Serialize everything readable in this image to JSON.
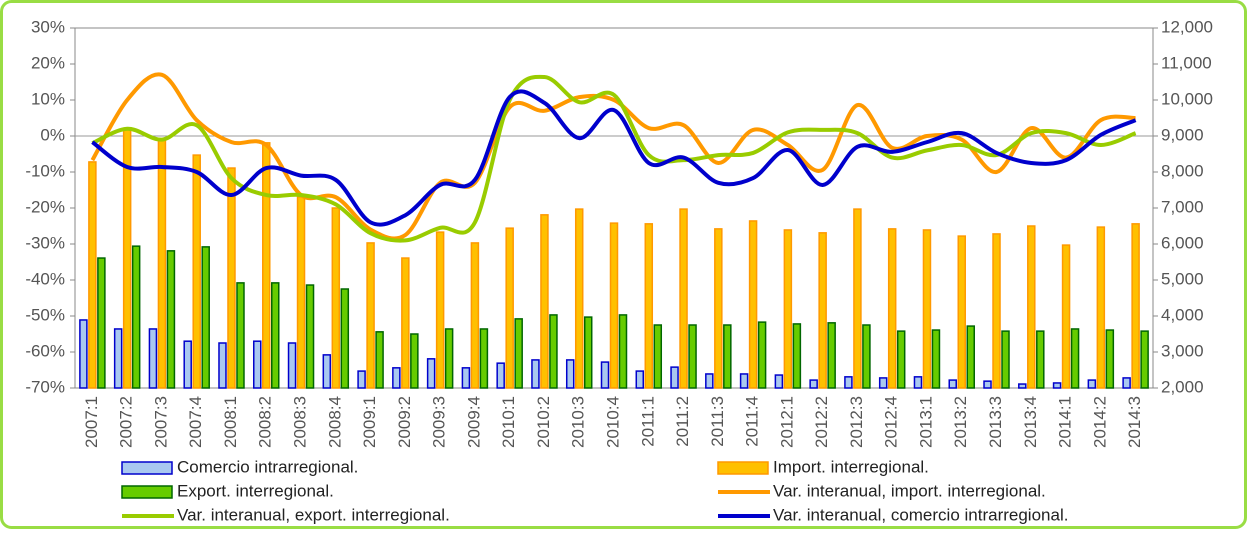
{
  "chart_data": {
    "type": "combo",
    "categories": [
      "2007:1",
      "2007:2",
      "2007:3",
      "2007:4",
      "2008:1",
      "2008:2",
      "2008:3",
      "2008:4",
      "2009:1",
      "2009:2",
      "2009:3",
      "2009:4",
      "2010:1",
      "2010:2",
      "2010:3",
      "2010:4",
      "2011:1",
      "2011:2",
      "2011:3",
      "2011:4",
      "2012:1",
      "2012:2",
      "2012:3",
      "2012:4",
      "2013:1",
      "2013:2",
      "2013:3",
      "2013:4",
      "2014:1",
      "2014:2",
      "2014:3"
    ],
    "series": [
      {
        "name": "Comercio intrarregional.",
        "type": "bar",
        "axis": "y2",
        "color": "#a9c8f0",
        "edge": "#0000cc",
        "values": [
          3890,
          3640,
          3640,
          3300,
          3250,
          3300,
          3250,
          2920,
          2470,
          2560,
          2810,
          2560,
          2690,
          2780,
          2780,
          2720,
          2470,
          2580,
          2390,
          2390,
          2360,
          2220,
          2310,
          2280,
          2310,
          2220,
          2190,
          2110,
          2140,
          2220,
          2280
        ]
      },
      {
        "name": "Import. interregional.",
        "type": "bar",
        "axis": "y2",
        "color": "#ffc000",
        "edge": "#ff9900",
        "values": [
          8280,
          9170,
          8890,
          8470,
          8110,
          8810,
          7310,
          7000,
          6030,
          5610,
          6330,
          6030,
          6440,
          6810,
          6970,
          6580,
          6560,
          6970,
          6420,
          6640,
          6390,
          6310,
          6970,
          6420,
          6390,
          6220,
          6280,
          6500,
          5970,
          6470,
          6560
        ]
      },
      {
        "name": "Export. interregional.",
        "type": "bar",
        "axis": "y2",
        "color": "#66cc00",
        "edge": "#006600",
        "values": [
          5610,
          5940,
          5810,
          5920,
          4920,
          4920,
          4860,
          4750,
          3560,
          3500,
          3640,
          3640,
          3920,
          4030,
          3970,
          4030,
          3750,
          3750,
          3750,
          3830,
          3780,
          3810,
          3750,
          3580,
          3610,
          3720,
          3580,
          3580,
          3640,
          3610,
          3580
        ]
      },
      {
        "name": "Var. interanual, import. interregional.",
        "type": "line",
        "color": "#ff9900",
        "values": [
          -6.7,
          10,
          17,
          4.4,
          -1.7,
          -2.5,
          -16.4,
          -17,
          -26,
          -27.5,
          -13,
          -13,
          8,
          7,
          10.8,
          10,
          2.2,
          3,
          -7.5,
          1.7,
          -2.5,
          -9.4,
          8.6,
          -3.3,
          0,
          -1,
          -10,
          2.2,
          -6,
          4.4,
          5
        ]
      },
      {
        "name": "Var. interanual, export. interregional.",
        "type": "line",
        "color": "#99cc00",
        "values": [
          -2,
          2,
          -1,
          3,
          -11.7,
          -16.4,
          -16.4,
          -19,
          -27,
          -29,
          -25.5,
          -24,
          10,
          16.4,
          9.4,
          11.4,
          -5.3,
          -6.7,
          -5.3,
          -4.7,
          1,
          1.7,
          0.8,
          -6,
          -4,
          -2.5,
          -5.3,
          0.8,
          0.8,
          -2.5,
          0.8
        ]
      },
      {
        "name": "Var. interanual, comercio intrarregional.",
        "type": "line",
        "color": "#0000cc",
        "values": [
          -1.7,
          -8.6,
          -8.6,
          -10,
          -16.4,
          -8.9,
          -11,
          -12.2,
          -24,
          -22,
          -13.6,
          -12.2,
          10.8,
          9.2,
          -0.6,
          7.2,
          -7.5,
          -6,
          -13,
          -11.7,
          -3.9,
          -13.6,
          -3,
          -4.4,
          -1.7,
          0.8,
          -4.7,
          -7.5,
          -6.7,
          0.3,
          4.4
        ]
      }
    ],
    "ylim": [
      -70,
      30
    ],
    "yticks": [
      {
        "value": -70,
        "label": "-70%"
      },
      {
        "value": -60,
        "label": "-60%"
      },
      {
        "value": -50,
        "label": "-50%"
      },
      {
        "value": -40,
        "label": "-40%"
      },
      {
        "value": -30,
        "label": "-30%"
      },
      {
        "value": -20,
        "label": "-20%"
      },
      {
        "value": -10,
        "label": "-10%"
      },
      {
        "value": 0,
        "label": "0%"
      },
      {
        "value": 10,
        "label": "10%"
      },
      {
        "value": 20,
        "label": "20%"
      },
      {
        "value": 30,
        "label": "30%"
      }
    ],
    "y2lim": [
      2000,
      12000
    ],
    "y2ticks": [
      {
        "value": 2000,
        "label": "2,000"
      },
      {
        "value": 3000,
        "label": "3,000"
      },
      {
        "value": 4000,
        "label": "4,000"
      },
      {
        "value": 5000,
        "label": "5,000"
      },
      {
        "value": 6000,
        "label": "6,000"
      },
      {
        "value": 7000,
        "label": "7,000"
      },
      {
        "value": 8000,
        "label": "8,000"
      },
      {
        "value": 9000,
        "label": "9,000"
      },
      {
        "value": 10000,
        "label": "10,000"
      },
      {
        "value": 11000,
        "label": "11,000"
      },
      {
        "value": 12000,
        "label": "12,000"
      }
    ],
    "zero_line": 0,
    "legend": "bottom"
  }
}
